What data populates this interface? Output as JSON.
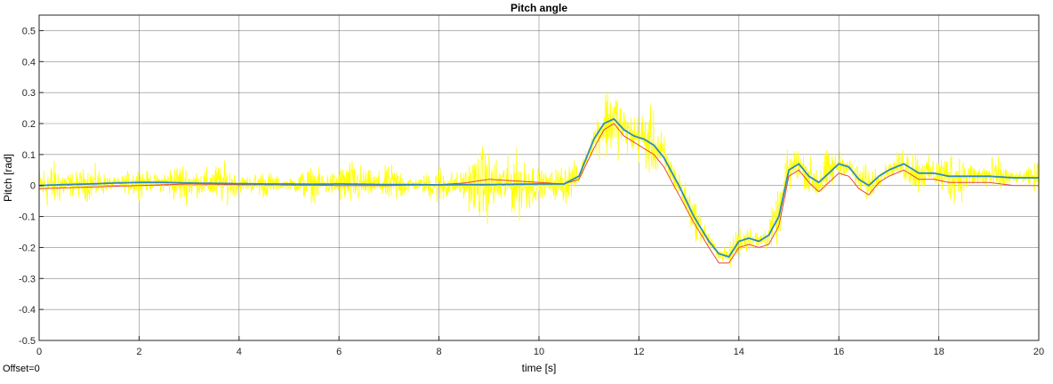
{
  "chart_data": {
    "type": "line",
    "title": "Pitch angle",
    "xlabel": "time [s]",
    "ylabel": "Pitch [rad]",
    "xlim": [
      0,
      20
    ],
    "ylim": [
      -0.5,
      0.55
    ],
    "xticks": [
      0,
      2,
      4,
      6,
      8,
      10,
      12,
      14,
      16,
      18,
      20
    ],
    "yticks": [
      -0.5,
      -0.4,
      -0.3,
      -0.2,
      -0.1,
      0,
      0.1,
      0.2,
      0.3,
      0.4,
      0.5
    ],
    "grid": true,
    "series": [
      {
        "color": "#ffff00",
        "style": "noisy measurement",
        "noise_amplitude": [
          [
            0,
            0.09
          ],
          [
            1,
            0.08
          ],
          [
            2,
            0.09
          ],
          [
            3,
            0.08
          ],
          [
            5,
            0.08
          ],
          [
            7,
            0.09
          ],
          [
            8.5,
            0.13
          ],
          [
            9,
            0.15
          ],
          [
            10,
            0.12
          ],
          [
            10.8,
            0.12
          ],
          [
            11.3,
            0.19
          ],
          [
            12,
            0.13
          ],
          [
            13,
            0.09
          ],
          [
            14,
            0.1
          ],
          [
            15,
            0.1
          ],
          [
            16,
            0.1
          ],
          [
            17,
            0.11
          ],
          [
            18,
            0.1
          ],
          [
            20,
            0.09
          ]
        ]
      },
      {
        "color": "#2e8bc0",
        "style": "estimate",
        "x": [
          0,
          0.5,
          1,
          1.5,
          2,
          2.5,
          3,
          3.5,
          4,
          4.5,
          5,
          5.5,
          6,
          6.5,
          7,
          7.5,
          8,
          8.5,
          9,
          9.5,
          10,
          10.5,
          10.8,
          11.1,
          11.3,
          11.5,
          11.7,
          11.9,
          12.1,
          12.3,
          12.5,
          12.8,
          13.1,
          13.4,
          13.6,
          13.8,
          14.0,
          14.2,
          14.4,
          14.6,
          14.8,
          15.0,
          15.2,
          15.4,
          15.6,
          15.8,
          16.0,
          16.2,
          16.4,
          16.6,
          16.8,
          17.0,
          17.3,
          17.6,
          17.9,
          18.2,
          18.5,
          19.0,
          19.5,
          20
        ],
        "y": [
          0,
          0.003,
          0.005,
          0.008,
          0.01,
          0.01,
          0.008,
          0.007,
          0.006,
          0.005,
          0.005,
          0.004,
          0.005,
          0.004,
          0.003,
          0.003,
          0.002,
          0.003,
          0.003,
          0.004,
          0.005,
          0.005,
          0.03,
          0.15,
          0.2,
          0.215,
          0.18,
          0.16,
          0.15,
          0.13,
          0.09,
          0.0,
          -0.1,
          -0.18,
          -0.22,
          -0.23,
          -0.18,
          -0.17,
          -0.18,
          -0.16,
          -0.1,
          0.05,
          0.07,
          0.03,
          0.01,
          0.04,
          0.07,
          0.06,
          0.02,
          0.0,
          0.03,
          0.05,
          0.07,
          0.04,
          0.04,
          0.03,
          0.03,
          0.03,
          0.025,
          0.025
        ]
      },
      {
        "color": "#e8463c",
        "style": "reference",
        "x": [
          0,
          1,
          2,
          3,
          4,
          5,
          6,
          7,
          8,
          8.5,
          9,
          9.5,
          10,
          10.5,
          10.8,
          11.1,
          11.3,
          11.5,
          11.7,
          11.9,
          12.1,
          12.3,
          12.5,
          12.8,
          13.1,
          13.4,
          13.6,
          13.8,
          14.0,
          14.2,
          14.4,
          14.6,
          14.8,
          15.0,
          15.2,
          15.4,
          15.6,
          15.8,
          16.0,
          16.2,
          16.4,
          16.6,
          16.8,
          17.0,
          17.3,
          17.6,
          17.9,
          18.2,
          18.5,
          19.0,
          19.5,
          20
        ],
        "y": [
          -0.01,
          -0.005,
          0.0,
          0.005,
          0.003,
          0.002,
          0.0,
          0.0,
          0.003,
          0.008,
          0.02,
          0.015,
          0.01,
          0.005,
          0.02,
          0.12,
          0.18,
          0.2,
          0.16,
          0.14,
          0.12,
          0.1,
          0.06,
          -0.03,
          -0.12,
          -0.2,
          -0.25,
          -0.25,
          -0.2,
          -0.19,
          -0.2,
          -0.19,
          -0.13,
          0.03,
          0.05,
          0.01,
          -0.02,
          0.01,
          0.04,
          0.03,
          -0.01,
          -0.03,
          0.01,
          0.03,
          0.05,
          0.02,
          0.02,
          0.01,
          0.01,
          0.01,
          0.0,
          0.0
        ]
      }
    ]
  },
  "footer": {
    "offset_label": "Offset=0"
  }
}
